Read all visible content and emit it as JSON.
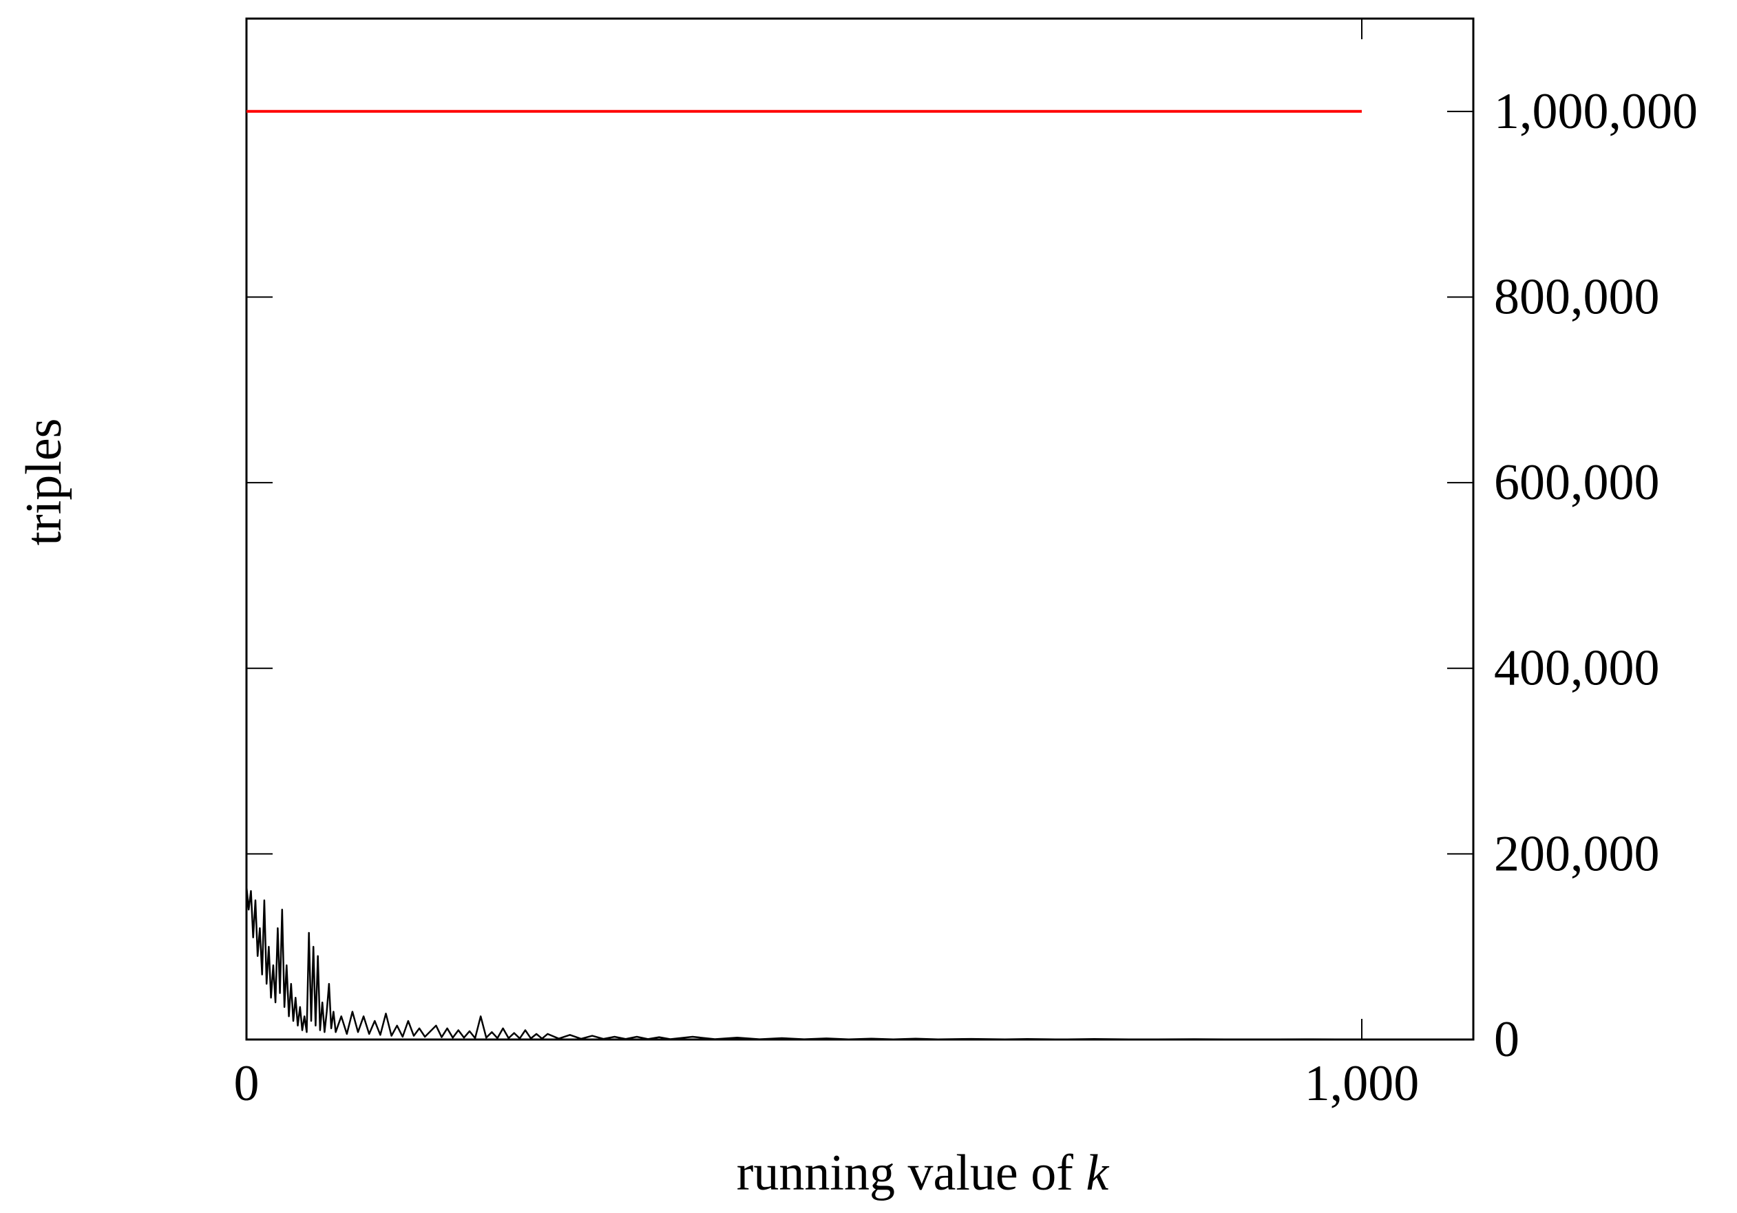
{
  "chart_data": {
    "type": "line",
    "xlabel": "running value of",
    "xlabel_var": "k",
    "ylabel": "triples",
    "xlim": [
      0,
      1100
    ],
    "ylim": [
      0,
      1100000
    ],
    "y_axis_side": "right",
    "x_ticks": [
      0,
      1000
    ],
    "x_tick_labels": [
      "0",
      "1,000"
    ],
    "y_ticks": [
      0,
      200000,
      400000,
      600000,
      800000,
      1000000
    ],
    "y_tick_labels": [
      "0",
      "200,000",
      "400,000",
      "600,000",
      "800,000",
      "1,000,000"
    ],
    "grid": false,
    "legend": "none",
    "series": [
      {
        "color": "#ff0000",
        "points": [
          [
            0,
            1000000
          ],
          [
            1000,
            1000000
          ]
        ]
      },
      {
        "color": "#000000",
        "points": [
          [
            0,
            165000
          ],
          [
            2,
            140000
          ],
          [
            4,
            160000
          ],
          [
            6,
            110000
          ],
          [
            8,
            150000
          ],
          [
            10,
            90000
          ],
          [
            12,
            120000
          ],
          [
            14,
            70000
          ],
          [
            16,
            150000
          ],
          [
            18,
            60000
          ],
          [
            20,
            100000
          ],
          [
            22,
            45000
          ],
          [
            24,
            80000
          ],
          [
            26,
            40000
          ],
          [
            28,
            120000
          ],
          [
            30,
            50000
          ],
          [
            32,
            140000
          ],
          [
            34,
            35000
          ],
          [
            36,
            80000
          ],
          [
            38,
            25000
          ],
          [
            40,
            60000
          ],
          [
            42,
            20000
          ],
          [
            44,
            45000
          ],
          [
            46,
            15000
          ],
          [
            48,
            35000
          ],
          [
            50,
            10000
          ],
          [
            52,
            25000
          ],
          [
            54,
            8000
          ],
          [
            56,
            115000
          ],
          [
            58,
            20000
          ],
          [
            60,
            100000
          ],
          [
            62,
            15000
          ],
          [
            64,
            90000
          ],
          [
            66,
            10000
          ],
          [
            68,
            40000
          ],
          [
            70,
            8000
          ],
          [
            72,
            30000
          ],
          [
            74,
            60000
          ],
          [
            76,
            12000
          ],
          [
            78,
            30000
          ],
          [
            80,
            8000
          ],
          [
            85,
            25000
          ],
          [
            90,
            6000
          ],
          [
            95,
            30000
          ],
          [
            100,
            8000
          ],
          [
            105,
            25000
          ],
          [
            110,
            6000
          ],
          [
            115,
            20000
          ],
          [
            120,
            5000
          ],
          [
            125,
            28000
          ],
          [
            130,
            4000
          ],
          [
            135,
            15000
          ],
          [
            140,
            3000
          ],
          [
            145,
            20000
          ],
          [
            150,
            4000
          ],
          [
            155,
            12000
          ],
          [
            160,
            3000
          ],
          [
            170,
            15000
          ],
          [
            175,
            2500
          ],
          [
            180,
            12000
          ],
          [
            185,
            2000
          ],
          [
            190,
            10000
          ],
          [
            195,
            2000
          ],
          [
            200,
            9000
          ],
          [
            205,
            1500
          ],
          [
            210,
            25000
          ],
          [
            215,
            2000
          ],
          [
            220,
            8000
          ],
          [
            225,
            1500
          ],
          [
            230,
            12000
          ],
          [
            235,
            1500
          ],
          [
            240,
            7000
          ],
          [
            245,
            1200
          ],
          [
            250,
            10000
          ],
          [
            255,
            1200
          ],
          [
            260,
            6000
          ],
          [
            265,
            1000
          ],
          [
            270,
            6000
          ],
          [
            280,
            1000
          ],
          [
            290,
            5000
          ],
          [
            300,
            800
          ],
          [
            310,
            4000
          ],
          [
            320,
            700
          ],
          [
            330,
            3000
          ],
          [
            340,
            600
          ],
          [
            350,
            3000
          ],
          [
            360,
            500
          ],
          [
            370,
            2500
          ],
          [
            380,
            400
          ],
          [
            400,
            3000
          ],
          [
            420,
            400
          ],
          [
            440,
            2000
          ],
          [
            460,
            300
          ],
          [
            480,
            1500
          ],
          [
            500,
            300
          ],
          [
            520,
            1200
          ],
          [
            540,
            250
          ],
          [
            560,
            1000
          ],
          [
            580,
            200
          ],
          [
            600,
            900
          ],
          [
            620,
            200
          ],
          [
            650,
            700
          ],
          [
            680,
            150
          ],
          [
            700,
            600
          ],
          [
            730,
            100
          ],
          [
            760,
            500
          ],
          [
            800,
            100
          ],
          [
            850,
            400
          ],
          [
            900,
            80
          ],
          [
            950,
            300
          ],
          [
            1000,
            100
          ]
        ]
      }
    ]
  }
}
